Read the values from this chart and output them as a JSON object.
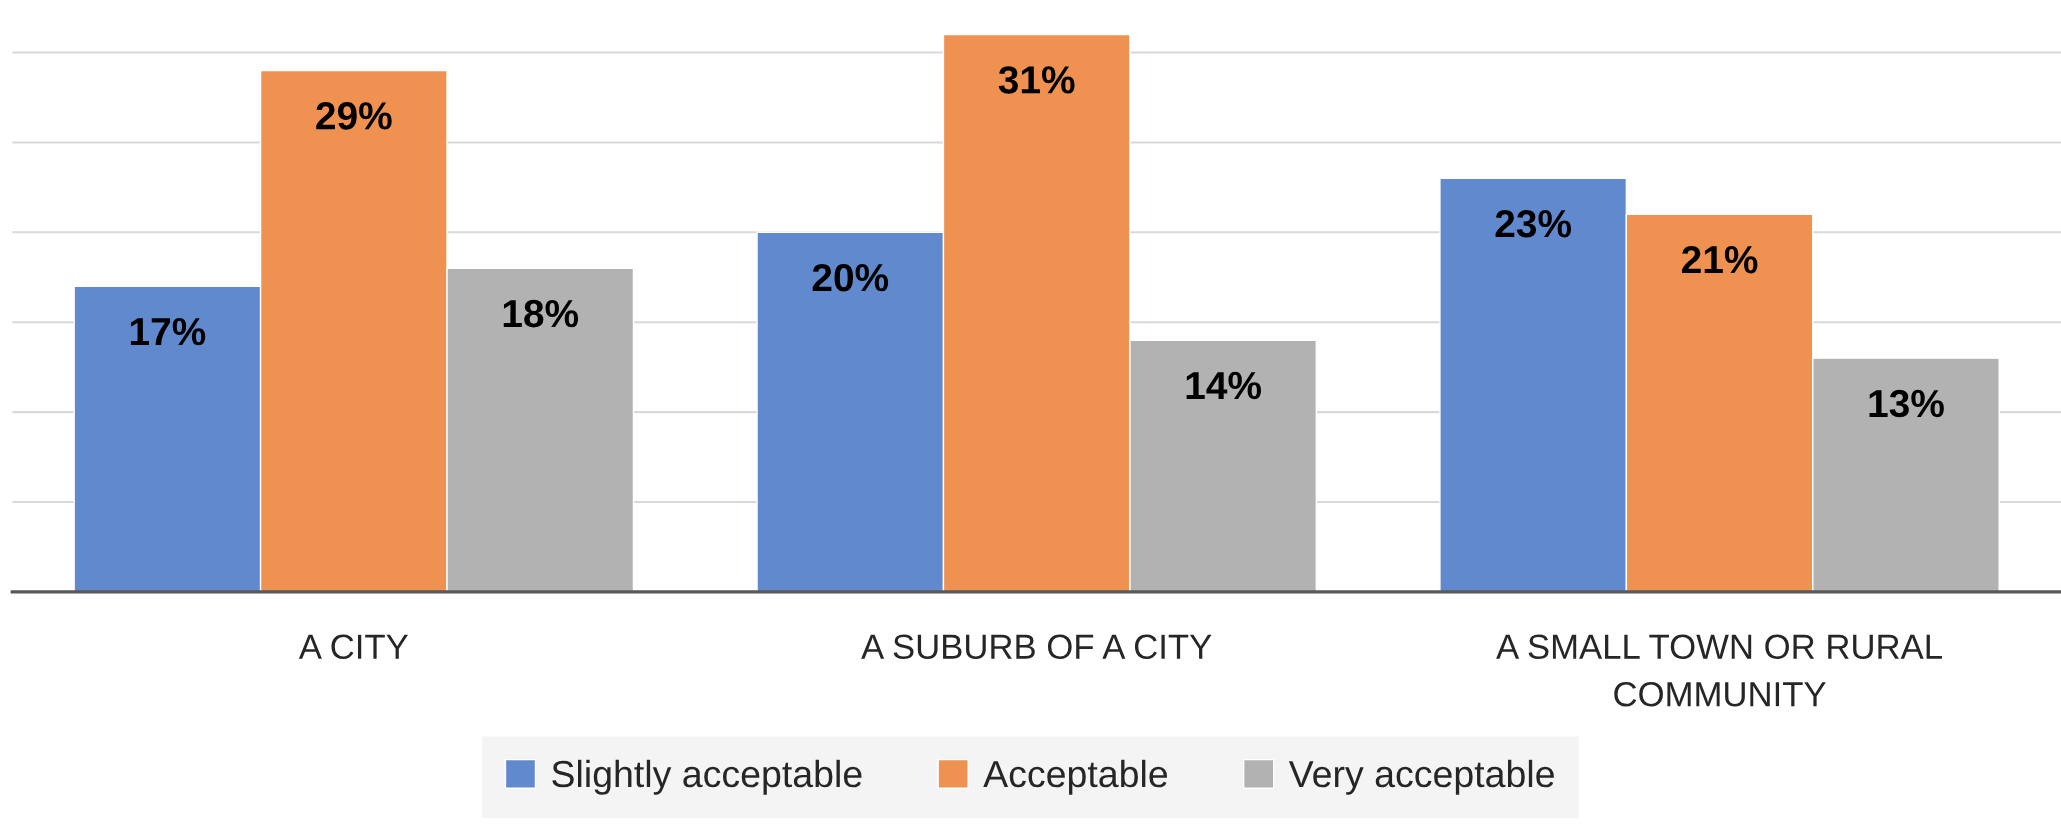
{
  "chart_data": {
    "type": "bar",
    "categories": [
      "A CITY",
      "A SUBURB OF A CITY",
      "A SMALL TOWN OR RURAL\nCOMMUNITY"
    ],
    "series": [
      {
        "name": "Slightly acceptable",
        "color": "#618ace",
        "values": [
          17,
          20,
          23
        ],
        "value_labels": [
          "17%",
          "20%",
          "23%"
        ]
      },
      {
        "name": "Acceptable",
        "color": "#ef9150",
        "values": [
          29,
          31,
          21
        ],
        "value_labels": [
          "29%",
          "31%",
          "21%"
        ]
      },
      {
        "name": "Very acceptable",
        "color": "#b2b2b2",
        "values": [
          18,
          14,
          13
        ],
        "value_labels": [
          "18%",
          "14%",
          "13%"
        ]
      }
    ],
    "tick_labels": "x",
    "grid": "y",
    "legend": "bottom"
  }
}
